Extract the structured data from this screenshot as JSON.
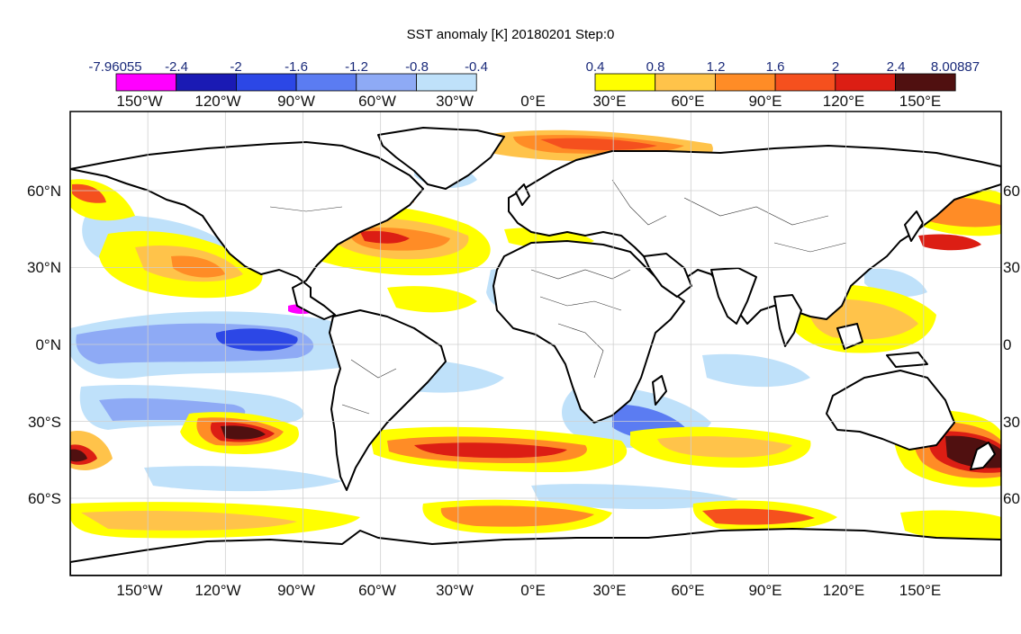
{
  "title": "SST anomaly [K] 20180201 Step:0",
  "colorbar_negative": {
    "labels": [
      "-7.96055",
      "-2.4",
      "-2",
      "-1.6",
      "-1.2",
      "-0.8",
      "-0.4"
    ],
    "colors": [
      "#ff00ff",
      "#1a1ab4",
      "#2c47e6",
      "#5b7cf2",
      "#8eaaf5",
      "#bfe1fa"
    ]
  },
  "colorbar_positive": {
    "labels": [
      "0.4",
      "0.8",
      "1.2",
      "1.6",
      "2",
      "2.4",
      "8.00887"
    ],
    "colors": [
      "#ffff00",
      "#ffc34a",
      "#ff8c26",
      "#f5501e",
      "#dc1e14",
      "#501010"
    ]
  },
  "axes": {
    "top_lon_labels": [
      "150°W",
      "120°W",
      "90°W",
      "60°W",
      "30°W",
      "0°E",
      "30°E",
      "60°E",
      "90°E",
      "120°E",
      "150°E"
    ],
    "bottom_lon_labels": [
      "150°W",
      "120°W",
      "90°W",
      "60°W",
      "30°W",
      "0°E",
      "30°E",
      "60°E",
      "90°E",
      "120°E",
      "150°E"
    ],
    "left_lat_labels": [
      "60°N",
      "30°N",
      "0°N",
      "30°S",
      "60°S"
    ],
    "right_lat_labels": [
      "60",
      "30",
      "0",
      "30",
      "60"
    ]
  },
  "map": {
    "land_color": "#ffffff",
    "ocean_background": "#ffffff",
    "coastline_color": "#000000",
    "gridlines": true,
    "projection": "equirectangular"
  }
}
